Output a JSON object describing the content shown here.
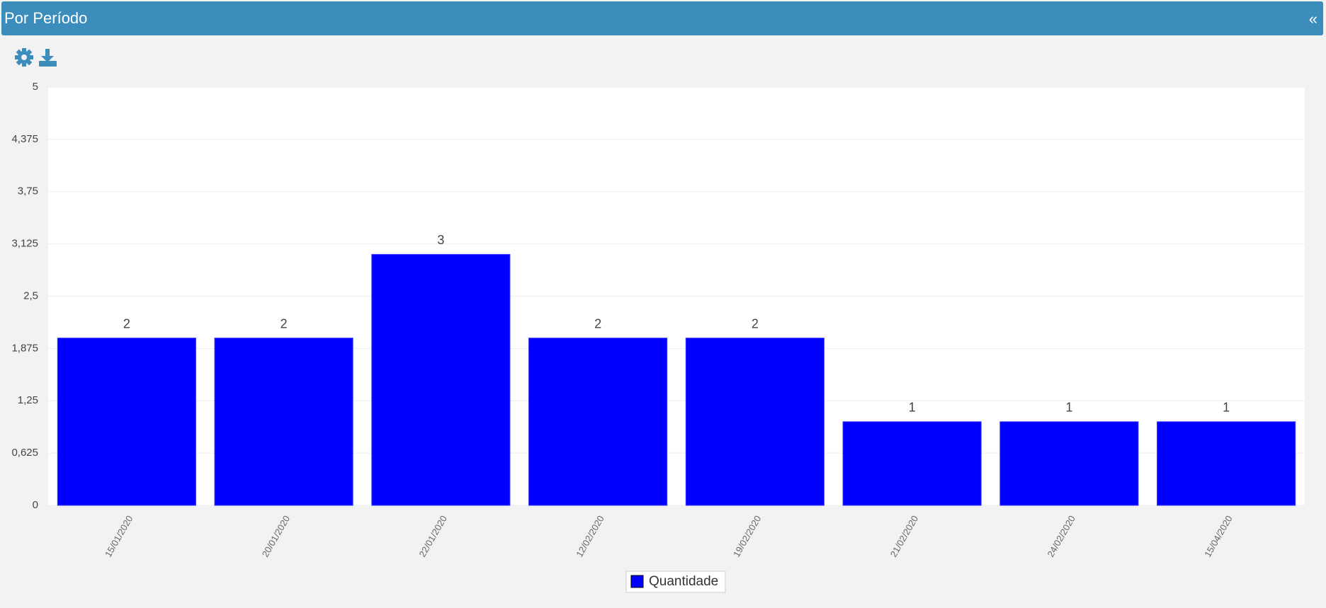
{
  "panel": {
    "collapse": "«"
  },
  "chart_data": {
    "type": "bar",
    "title": "Por Período",
    "categories": [
      "15/01/2020",
      "20/01/2020",
      "22/01/2020",
      "12/02/2020",
      "19/02/2020",
      "21/02/2020",
      "24/02/2020",
      "15/04/2020"
    ],
    "series": [
      {
        "name": "Quantidade",
        "color": "#0000ff",
        "values": [
          2,
          2,
          3,
          2,
          2,
          1,
          1,
          1
        ]
      }
    ],
    "ylim": [
      0,
      5
    ],
    "yticks": [
      0,
      {
        "value": 0.625,
        "label": "0,625"
      },
      {
        "value": 1.25,
        "label": "1,25"
      },
      {
        "value": 1.875,
        "label": "1,875"
      },
      {
        "value": 2.5,
        "label": "2,5"
      },
      {
        "value": 3.125,
        "label": "3,125"
      },
      {
        "value": 3.75,
        "label": "3,75"
      },
      {
        "value": 4.375,
        "label": "4,375"
      },
      5
    ],
    "grid": true,
    "legend": "bottom"
  }
}
